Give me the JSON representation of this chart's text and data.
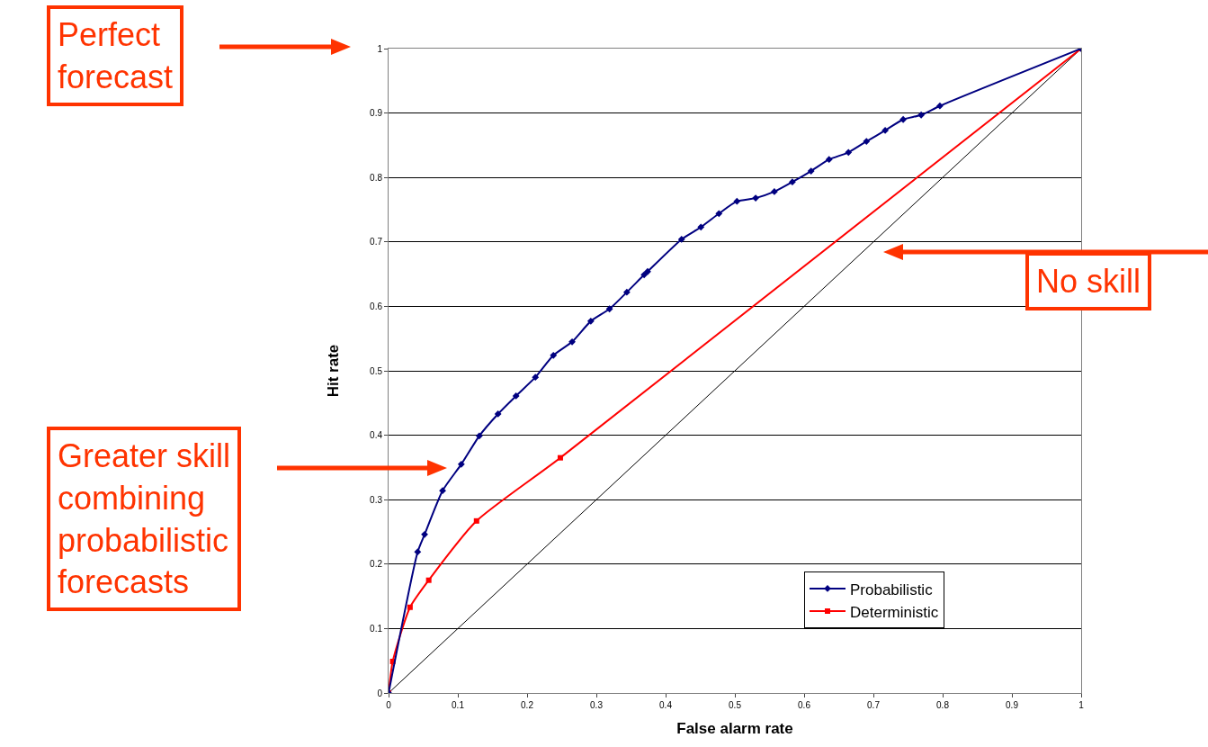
{
  "chart_data": {
    "type": "line",
    "xlabel": "False alarm rate",
    "ylabel": "Hit rate",
    "xlim": [
      0,
      1
    ],
    "ylim": [
      0,
      1
    ],
    "xticks": [
      0,
      0.1,
      0.2,
      0.3,
      0.4,
      0.5,
      0.6,
      0.7,
      0.8,
      0.9,
      1
    ],
    "yticks": [
      0,
      0.1,
      0.2,
      0.3,
      0.4,
      0.5,
      0.6,
      0.7,
      0.8,
      0.9,
      1
    ],
    "grid": "y",
    "legend": "bottom right",
    "series": [
      {
        "name": "Probabilistic",
        "color": "#000080",
        "marker": "diamond",
        "x": [
          0,
          0.042,
          0.052,
          0.078,
          0.105,
          0.131,
          0.158,
          0.184,
          0.212,
          0.238,
          0.265,
          0.292,
          0.319,
          0.344,
          0.369,
          0.374,
          0.423,
          0.451,
          0.477,
          0.503,
          0.53,
          0.557,
          0.583,
          0.61,
          0.636,
          0.664,
          0.69,
          0.717,
          0.743,
          0.769,
          0.796,
          1
        ],
        "values": [
          0,
          0.219,
          0.246,
          0.314,
          0.355,
          0.399,
          0.433,
          0.461,
          0.49,
          0.524,
          0.545,
          0.577,
          0.596,
          0.622,
          0.649,
          0.654,
          0.704,
          0.723,
          0.744,
          0.763,
          0.768,
          0.778,
          0.793,
          0.81,
          0.828,
          0.839,
          0.856,
          0.873,
          0.89,
          0.897,
          0.911,
          1
        ]
      },
      {
        "name": "Deterministic",
        "color": "#ff0000",
        "marker": "square",
        "x": [
          0,
          0.006,
          0.031,
          0.058,
          0.127,
          0.248,
          1
        ],
        "values": [
          0,
          0.049,
          0.133,
          0.175,
          0.267,
          0.365,
          1
        ]
      },
      {
        "color": "#000000",
        "marker": "none",
        "x": [
          0,
          1
        ],
        "values": [
          0,
          1
        ]
      }
    ],
    "annotations": [
      "Perfect forecast",
      "No skill",
      "Greater skill combining probabilistic forecasts"
    ]
  }
}
